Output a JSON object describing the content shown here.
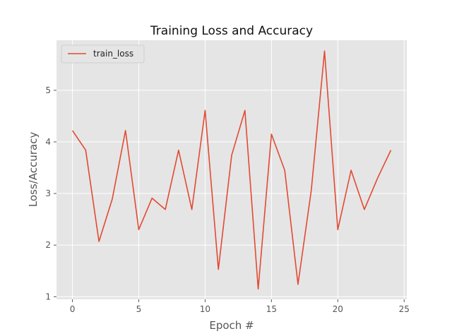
{
  "chart_data": {
    "type": "line",
    "title": "Training Loss and Accuracy",
    "xlabel": "Epoch #",
    "ylabel": "Loss/Accuracy",
    "xlim": [
      -1.2,
      25.2
    ],
    "ylim": [
      0.95,
      5.97
    ],
    "xticks": [
      0,
      5,
      10,
      15,
      20,
      25
    ],
    "yticks": [
      1,
      2,
      3,
      4,
      5
    ],
    "grid": true,
    "legend_position": "top-left",
    "series": [
      {
        "name": "train_loss",
        "color": "#E24A33",
        "x": [
          0,
          1,
          2,
          3,
          4,
          5,
          6,
          7,
          8,
          9,
          10,
          11,
          12,
          13,
          14,
          15,
          16,
          17,
          18,
          19,
          20,
          21,
          22,
          23,
          24
        ],
        "y": [
          4.22,
          3.84,
          2.07,
          2.89,
          4.22,
          2.3,
          2.91,
          2.69,
          3.84,
          2.69,
          4.61,
          1.53,
          3.74,
          4.61,
          1.15,
          4.15,
          3.45,
          1.24,
          3.06,
          5.76,
          2.3,
          3.45,
          2.69,
          3.3,
          3.84
        ]
      }
    ]
  }
}
